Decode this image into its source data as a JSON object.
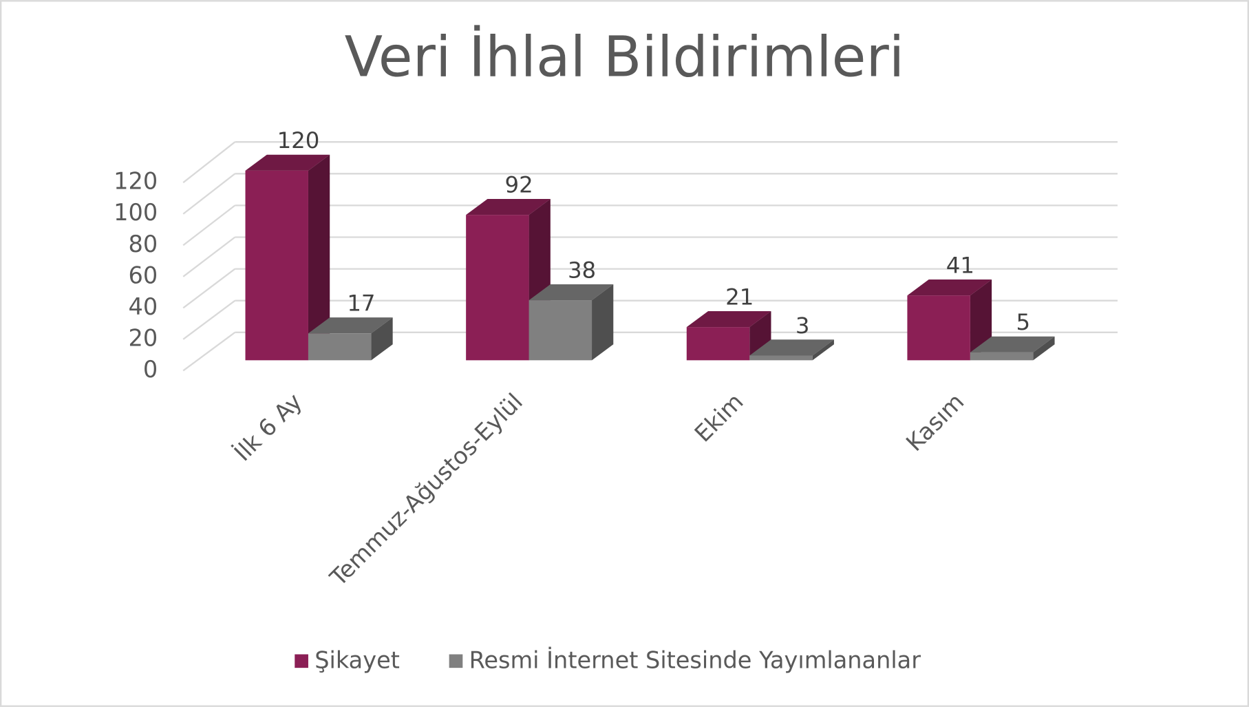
{
  "chart_data": {
    "type": "bar3d",
    "title": "Veri İhlal Bildirimleri",
    "categories": [
      "İlk 6 Ay",
      "Temmuz-Ağustos-Eylül",
      "Ekim",
      "Kasım"
    ],
    "series": [
      {
        "name": "Şikayet",
        "color": "#8b1f55",
        "values": [
          120,
          92,
          21,
          41
        ]
      },
      {
        "name": "Resmi İnternet Sitesinde Yayımlananlar",
        "color": "#808080",
        "values": [
          17,
          38,
          3,
          5
        ]
      }
    ],
    "ylim": [
      0,
      120
    ],
    "yticks": [
      0,
      20,
      40,
      60,
      80,
      100,
      120
    ],
    "grid": true
  }
}
